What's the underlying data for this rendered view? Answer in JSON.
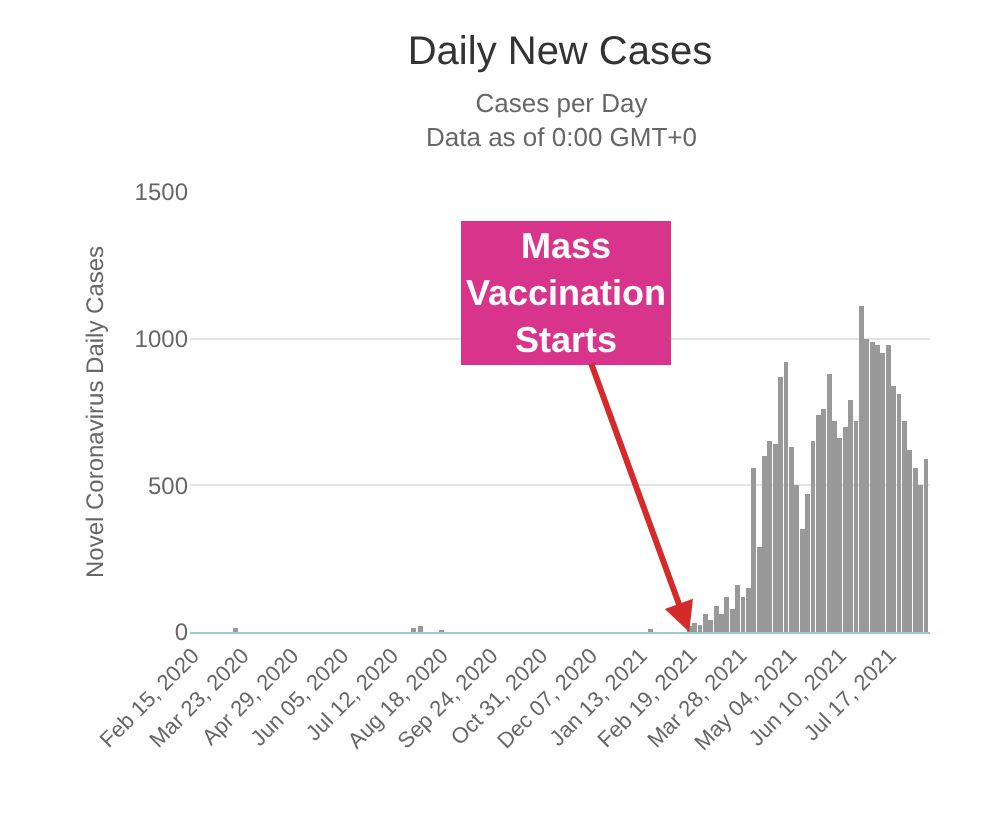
{
  "chart_data": {
    "type": "bar",
    "title": "Daily New Cases",
    "subtitle": "Cases per Day\nData as of 0:00 GMT+0",
    "ylabel": "Novel Coronavirus Daily Cases",
    "x": [
      "2020-03-18",
      "2020-07-28",
      "2020-08-02",
      "2020-08-18",
      "2021-01-20",
      "2021-02-18",
      "2021-02-22",
      "2021-02-26",
      "2021-03-02",
      "2021-03-06",
      "2021-03-10",
      "2021-03-14",
      "2021-03-18",
      "2021-03-22",
      "2021-03-26",
      "2021-03-30",
      "2021-04-03",
      "2021-04-07",
      "2021-04-11",
      "2021-04-15",
      "2021-04-19",
      "2021-04-23",
      "2021-04-27",
      "2021-05-01",
      "2021-05-05",
      "2021-05-09",
      "2021-05-13",
      "2021-05-17",
      "2021-05-21",
      "2021-05-25",
      "2021-05-29",
      "2021-06-02",
      "2021-06-06",
      "2021-06-10",
      "2021-06-14",
      "2021-06-18",
      "2021-06-22",
      "2021-06-26",
      "2021-06-30",
      "2021-07-04",
      "2021-07-08",
      "2021-07-12",
      "2021-07-16",
      "2021-07-20",
      "2021-07-24",
      "2021-07-28",
      "2021-08-01",
      "2021-08-05",
      "2021-08-09",
      "2021-08-13"
    ],
    "values": [
      15,
      15,
      20,
      8,
      10,
      20,
      30,
      25,
      60,
      40,
      90,
      60,
      120,
      80,
      160,
      120,
      150,
      560,
      290,
      600,
      650,
      640,
      870,
      920,
      630,
      500,
      350,
      470,
      650,
      740,
      760,
      880,
      720,
      660,
      700,
      790,
      720,
      1110,
      1000,
      990,
      980,
      950,
      980,
      840,
      810,
      720,
      620,
      560,
      500,
      590
    ],
    "color": "#999999",
    "xlim": [
      "2020-02-13",
      "2021-08-16"
    ],
    "xticks": [
      {
        "value": "2020-02-15",
        "label": "Feb 15, 2020"
      },
      {
        "value": "2020-03-23",
        "label": "Mar 23, 2020"
      },
      {
        "value": "2020-04-29",
        "label": "Apr 29, 2020"
      },
      {
        "value": "2020-06-05",
        "label": "Jun 05, 2020"
      },
      {
        "value": "2020-07-12",
        "label": "Jul 12, 2020"
      },
      {
        "value": "2020-08-18",
        "label": "Aug 18, 2020"
      },
      {
        "value": "2020-09-24",
        "label": "Sep 24, 2020"
      },
      {
        "value": "2020-10-31",
        "label": "Oct 31, 2020"
      },
      {
        "value": "2020-12-07",
        "label": "Dec 07, 2020"
      },
      {
        "value": "2021-01-13",
        "label": "Jan 13, 2021"
      },
      {
        "value": "2021-02-19",
        "label": "Feb 19, 2021"
      },
      {
        "value": "2021-03-28",
        "label": "Mar 28, 2021"
      },
      {
        "value": "2021-05-04",
        "label": "May 04, 2021"
      },
      {
        "value": "2021-06-10",
        "label": "Jun 10, 2021"
      },
      {
        "value": "2021-07-17",
        "label": "Jul 17, 2021"
      }
    ],
    "ylim": [
      0,
      1500
    ],
    "yticks": [
      0,
      500,
      1000,
      1500
    ],
    "grid": "y",
    "annotations": [
      {
        "text": "Mass Vaccination Starts",
        "x": "2021-02-18",
        "y": 0
      }
    ]
  }
}
